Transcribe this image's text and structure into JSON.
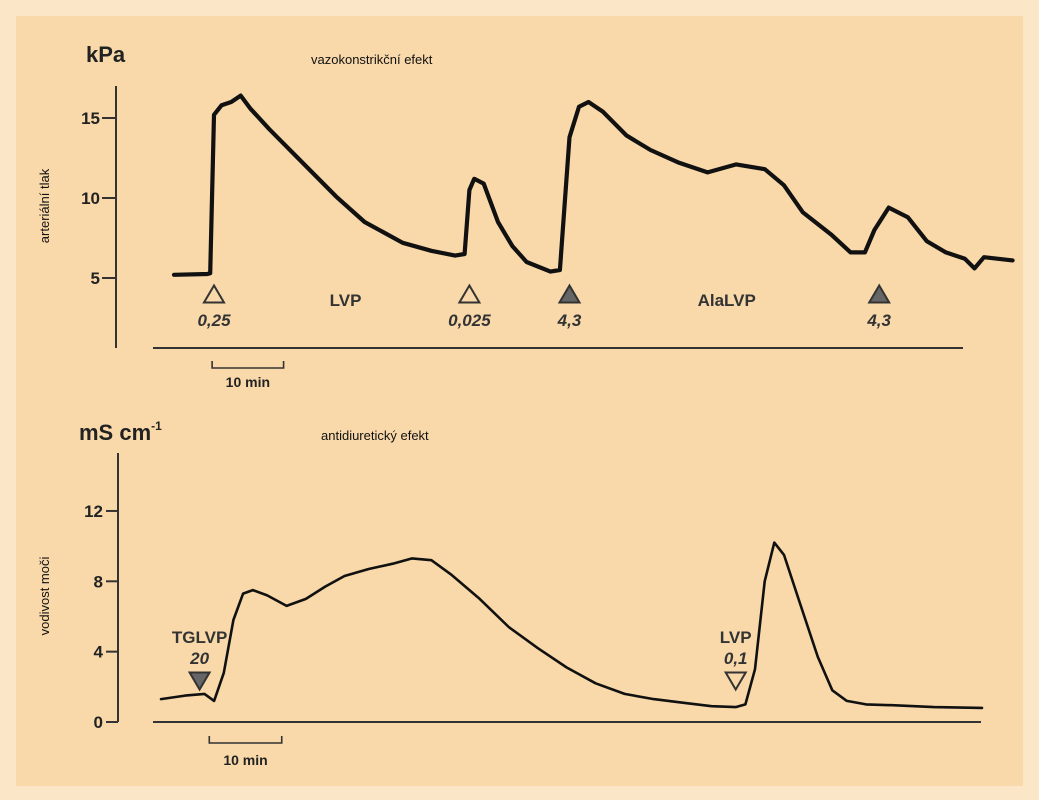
{
  "colors": {
    "page_background": "#fbe6c8",
    "figure_background": "#f9d9aa",
    "trace": "#111111",
    "filled_marker": "#666666",
    "open_marker": "#f9d9aa"
  },
  "chart_data": [
    {
      "type": "line",
      "title": "vazokonstrikční efekt",
      "unit": "kPa",
      "ylabel": "arteriální tlak",
      "ylim": [
        3,
        17
      ],
      "yticks": [
        5,
        10,
        15
      ],
      "xlim": [
        0,
        85
      ],
      "grid": false,
      "scale_bar": {
        "label": "10 min",
        "x_start": 4,
        "x_end": 11.5
      },
      "series": [
        {
          "values": [
            [
              0,
              5.2
            ],
            [
              3.5,
              5.25
            ],
            [
              3.8,
              5.3
            ],
            [
              4.2,
              15.2
            ],
            [
              5,
              15.8
            ],
            [
              6,
              16.0
            ],
            [
              7,
              16.4
            ],
            [
              8,
              15.6
            ],
            [
              10,
              14.3
            ],
            [
              13,
              12.5
            ],
            [
              17,
              10.1
            ],
            [
              20,
              8.5
            ],
            [
              24,
              7.2
            ],
            [
              27,
              6.7
            ],
            [
              29.5,
              6.4
            ],
            [
              30.5,
              6.5
            ],
            [
              31,
              10.5
            ],
            [
              31.5,
              11.2
            ],
            [
              32.5,
              10.9
            ],
            [
              34,
              8.5
            ],
            [
              35.5,
              7.0
            ],
            [
              37,
              6.0
            ],
            [
              39.5,
              5.4
            ],
            [
              40.5,
              5.5
            ],
            [
              41.5,
              13.8
            ],
            [
              42.5,
              15.7
            ],
            [
              43.5,
              16.0
            ],
            [
              45,
              15.4
            ],
            [
              47.5,
              13.9
            ],
            [
              50,
              13.0
            ],
            [
              53,
              12.2
            ],
            [
              56,
              11.6
            ],
            [
              59,
              12.1
            ],
            [
              62,
              11.8
            ],
            [
              64,
              10.8
            ],
            [
              66,
              9.1
            ],
            [
              69,
              7.7
            ],
            [
              71,
              6.6
            ],
            [
              72.5,
              6.6
            ],
            [
              73.5,
              8.0
            ],
            [
              75,
              9.4
            ],
            [
              77,
              8.8
            ],
            [
              79,
              7.3
            ],
            [
              81,
              6.6
            ],
            [
              83,
              6.2
            ],
            [
              84,
              5.6
            ],
            [
              85,
              6.3
            ],
            [
              88,
              6.1
            ]
          ]
        }
      ],
      "markers": [
        {
          "x": 4.2,
          "label": "",
          "dose": "0,25",
          "filled": false,
          "pointing": "up"
        },
        {
          "x": 31,
          "label": "",
          "dose": "0,025",
          "filled": false,
          "pointing": "up"
        },
        {
          "x": 41.5,
          "label": "",
          "dose": "4,3",
          "filled": true,
          "pointing": "up"
        },
        {
          "x": 74,
          "label": "",
          "dose": "4,3",
          "filled": true,
          "pointing": "up"
        }
      ],
      "annotations": [
        {
          "x": 18,
          "text": "LVP"
        },
        {
          "x": 58,
          "text": "AlaLVP"
        }
      ]
    },
    {
      "type": "line",
      "title": "antidiuretický efekt",
      "unit": "mS cm",
      "unit_superscript": "-1",
      "ylabel": "vodivost moči",
      "ylim": [
        0,
        14.5
      ],
      "yticks": [
        0,
        4,
        8,
        12
      ],
      "xlim": [
        0,
        85
      ],
      "grid": false,
      "scale_bar": {
        "label": "10 min",
        "x_start": 5,
        "x_end": 12.5
      },
      "series": [
        {
          "values": [
            [
              0,
              1.3
            ],
            [
              2.5,
              1.5
            ],
            [
              4.5,
              1.6
            ],
            [
              5.5,
              1.2
            ],
            [
              6.5,
              2.8
            ],
            [
              7.5,
              5.8
            ],
            [
              8.5,
              7.3
            ],
            [
              9.5,
              7.5
            ],
            [
              11,
              7.2
            ],
            [
              13,
              6.6
            ],
            [
              15,
              7.0
            ],
            [
              17,
              7.7
            ],
            [
              19,
              8.3
            ],
            [
              21.5,
              8.7
            ],
            [
              24,
              9.0
            ],
            [
              26,
              9.3
            ],
            [
              28,
              9.2
            ],
            [
              30,
              8.4
            ],
            [
              33,
              7.0
            ],
            [
              36,
              5.4
            ],
            [
              39,
              4.2
            ],
            [
              42,
              3.1
            ],
            [
              45,
              2.2
            ],
            [
              48,
              1.6
            ],
            [
              51,
              1.3
            ],
            [
              54,
              1.1
            ],
            [
              57,
              0.9
            ],
            [
              59.5,
              0.85
            ],
            [
              60.5,
              1.0
            ],
            [
              61.5,
              3.0
            ],
            [
              62.5,
              8.0
            ],
            [
              63.5,
              10.2
            ],
            [
              64.5,
              9.5
            ],
            [
              66,
              7.0
            ],
            [
              68,
              3.7
            ],
            [
              69.5,
              1.8
            ],
            [
              71,
              1.2
            ],
            [
              73,
              1.0
            ],
            [
              76,
              0.95
            ],
            [
              80,
              0.85
            ],
            [
              85,
              0.8
            ]
          ]
        }
      ],
      "markers": [
        {
          "x": 4,
          "label": "TGLVP",
          "dose": "20",
          "filled": true,
          "pointing": "down"
        },
        {
          "x": 59.5,
          "label": "LVP",
          "dose": "0,1",
          "filled": false,
          "pointing": "down"
        }
      ]
    }
  ]
}
